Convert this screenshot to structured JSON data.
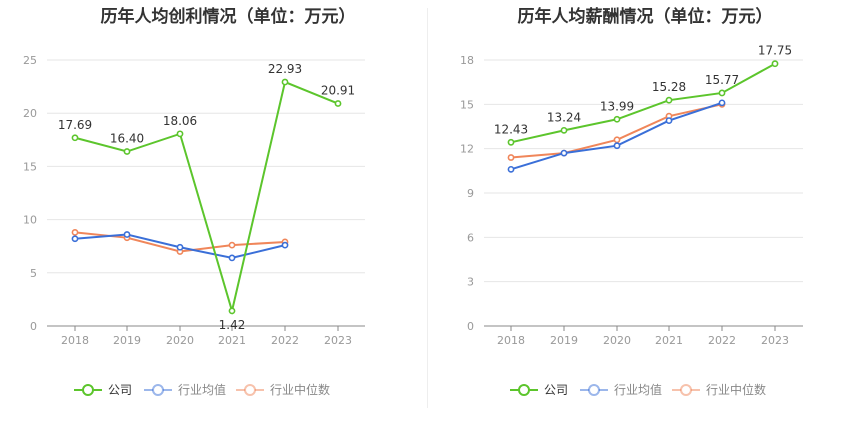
{
  "colors": {
    "company": "#5cc52c",
    "industry_avg": "#3a6fd8",
    "industry_median": "#f0865a",
    "axis": "#999999",
    "grid": "#e6e6e6",
    "label": "#333333"
  },
  "legend": {
    "company": "公司",
    "industry_avg": "行业均值",
    "industry_median": "行业中位数"
  },
  "chart_data": [
    {
      "type": "line",
      "title": "历年人均创利情况（单位：万元）",
      "categories": [
        "2018",
        "2019",
        "2020",
        "2021",
        "2022",
        "2023"
      ],
      "ylim": [
        0,
        25
      ],
      "yticks": [
        0,
        5,
        10,
        15,
        20,
        25
      ],
      "grid": true,
      "legend_position": "bottom",
      "series": [
        {
          "name": "公司",
          "key": "company",
          "values": [
            17.69,
            16.4,
            18.06,
            1.42,
            22.93,
            20.91
          ],
          "labels": [
            "17.69",
            "16.40",
            "18.06",
            "1.42",
            "22.93",
            "20.91"
          ]
        },
        {
          "name": "行业均值",
          "key": "industry_avg",
          "values": [
            8.2,
            8.6,
            7.4,
            6.4,
            7.6,
            null
          ]
        },
        {
          "name": "行业中位数",
          "key": "industry_median",
          "values": [
            8.8,
            8.3,
            7.0,
            7.6,
            7.9,
            null
          ]
        }
      ]
    },
    {
      "type": "line",
      "title": "历年人均薪酬情况（单位：万元）",
      "categories": [
        "2018",
        "2019",
        "2020",
        "2021",
        "2022",
        "2023"
      ],
      "ylim": [
        0,
        18
      ],
      "yticks": [
        0,
        3,
        6,
        9,
        12,
        15,
        18
      ],
      "grid": true,
      "legend_position": "bottom",
      "series": [
        {
          "name": "公司",
          "key": "company",
          "values": [
            12.43,
            13.24,
            13.99,
            15.28,
            15.77,
            17.75
          ],
          "labels": [
            "12.43",
            "13.24",
            "13.99",
            "15.28",
            "15.77",
            "17.75"
          ]
        },
        {
          "name": "行业均值",
          "key": "industry_avg",
          "values": [
            10.6,
            11.7,
            12.2,
            13.9,
            15.1,
            null
          ]
        },
        {
          "name": "行业中位数",
          "key": "industry_median",
          "values": [
            11.4,
            11.7,
            12.6,
            14.2,
            15.0,
            null
          ]
        }
      ]
    }
  ]
}
